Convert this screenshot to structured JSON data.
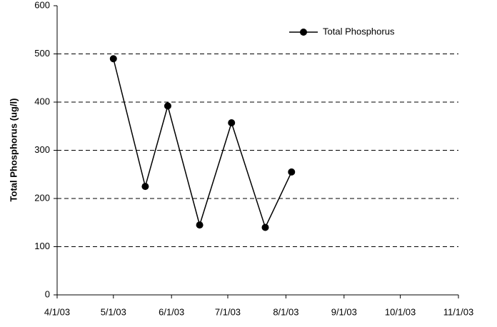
{
  "chart_data": {
    "type": "line",
    "y_label": "Total Phosphorus (ug/l)",
    "x": [
      "2003-05-01",
      "2003-05-18",
      "2003-05-30",
      "2003-06-16",
      "2003-07-03",
      "2003-07-21",
      "2003-08-04"
    ],
    "series": [
      {
        "name": "Total Phosphorus",
        "color": "#000000",
        "values": [
          490,
          225,
          392,
          145,
          357,
          140,
          255
        ]
      }
    ],
    "xlim": [
      "2003-04-01",
      "2003-11-01"
    ],
    "xticks": [
      {
        "value": "2003-04-01",
        "label": "4/1/03"
      },
      {
        "value": "2003-05-01",
        "label": "5/1/03"
      },
      {
        "value": "2003-06-01",
        "label": "6/1/03"
      },
      {
        "value": "2003-07-01",
        "label": "7/1/03"
      },
      {
        "value": "2003-08-01",
        "label": "8/1/03"
      },
      {
        "value": "2003-09-01",
        "label": "9/1/03"
      },
      {
        "value": "2003-10-01",
        "label": "10/1/03"
      },
      {
        "value": "2003-11-01",
        "label": "11/1/03"
      }
    ],
    "ylim": [
      0,
      600
    ],
    "yticks": [
      0,
      100,
      200,
      300,
      400,
      500,
      600
    ],
    "grid": true,
    "legend": "top-right"
  }
}
